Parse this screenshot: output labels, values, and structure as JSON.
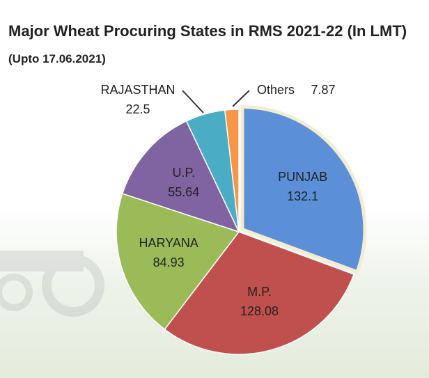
{
  "chart_data": {
    "type": "pie",
    "title": "Major Wheat Procuring States in RMS 2021-22 (In LMT)",
    "subtitle": "(Upto 17.06.2021)",
    "categories": [
      "PUNJAB",
      "M.P.",
      "HARYANA",
      "U.P.",
      "RAJASTHAN",
      "Others"
    ],
    "values": [
      132.1,
      128.08,
      84.93,
      55.64,
      22.5,
      7.87
    ],
    "colors": [
      "#5b8fd8",
      "#c0504d",
      "#9bbb59",
      "#8064a2",
      "#4bacc6",
      "#f79646"
    ]
  }
}
